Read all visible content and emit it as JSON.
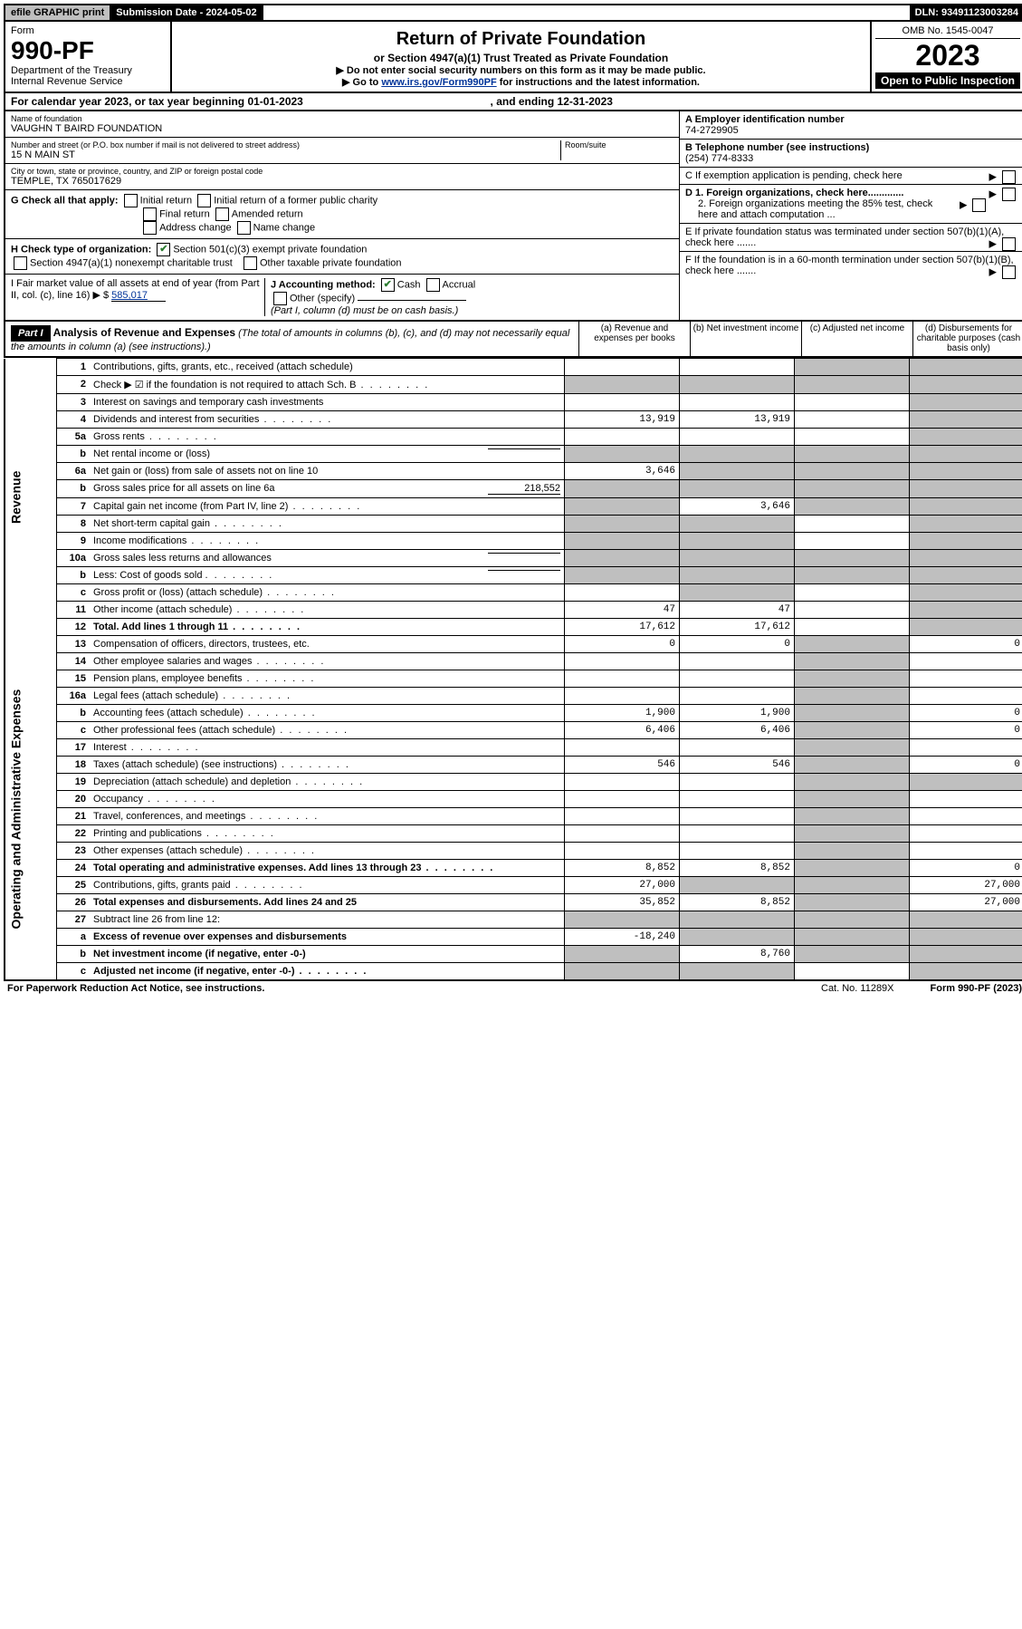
{
  "topbar": {
    "efile": "efile GRAPHIC print",
    "subdate": "Submission Date - 2024-05-02",
    "dln": "DLN: 93491123003284"
  },
  "header": {
    "form_label": "Form",
    "form_no": "990-PF",
    "dept1": "Department of the Treasury",
    "dept2": "Internal Revenue Service",
    "title": "Return of Private Foundation",
    "subtitle": "or Section 4947(a)(1) Trust Treated as Private Foundation",
    "instr1": "▶ Do not enter social security numbers on this form as it may be made public.",
    "instr2_pre": "▶ Go to ",
    "instr2_link": "www.irs.gov/Form990PF",
    "instr2_post": " for instructions and the latest information.",
    "omb": "OMB No. 1545-0047",
    "year": "2023",
    "open": "Open to Public Inspection"
  },
  "calrow": {
    "pre": "For calendar year 2023, or tax year beginning ",
    "begin": "01-01-2023",
    "mid": " , and ending ",
    "end": "12-31-2023"
  },
  "info": {
    "name_lbl": "Name of foundation",
    "name_val": "VAUGHN T BAIRD FOUNDATION",
    "addr_lbl": "Number and street (or P.O. box number if mail is not delivered to street address)",
    "addr_val": "15 N MAIN ST",
    "room_lbl": "Room/suite",
    "city_lbl": "City or town, state or province, country, and ZIP or foreign postal code",
    "city_val": "TEMPLE, TX  765017629",
    "a_lbl": "A Employer identification number",
    "a_val": "74-2729905",
    "b_lbl": "B Telephone number (see instructions)",
    "b_val": "(254) 774-8333",
    "c_lbl": "C If exemption application is pending, check here",
    "d1": "D 1. Foreign organizations, check here.............",
    "d2": "2. Foreign organizations meeting the 85% test, check here and attach computation ...",
    "e": "E  If private foundation status was terminated under section 507(b)(1)(A), check here .......",
    "f": "F  If the foundation is in a 60-month termination under section 507(b)(1)(B), check here .......",
    "g": "G Check all that apply:",
    "g_opts": [
      "Initial return",
      "Initial return of a former public charity",
      "Final return",
      "Amended return",
      "Address change",
      "Name change"
    ],
    "h": "H Check type of organization:",
    "h1": "Section 501(c)(3) exempt private foundation",
    "h2": "Section 4947(a)(1) nonexempt charitable trust",
    "h3": "Other taxable private foundation",
    "i_lbl": "I Fair market value of all assets at end of year (from Part II, col. (c), line 16) ▶ $",
    "i_val": "585,017",
    "j_lbl": "J Accounting method:",
    "j_cash": "Cash",
    "j_acc": "Accrual",
    "j_other": "Other (specify)",
    "j_note": "(Part I, column (d) must be on cash basis.)"
  },
  "part1": {
    "label": "Part I",
    "title": "Analysis of Revenue and Expenses",
    "note": " (The total of amounts in columns (b), (c), and (d) may not necessarily equal the amounts in column (a) (see instructions).)",
    "col_a": "(a) Revenue and expenses per books",
    "col_b": "(b) Net investment income",
    "col_c": "(c) Adjusted net income",
    "col_d": "(d) Disbursements for charitable purposes (cash basis only)"
  },
  "sections": {
    "rev": "Revenue",
    "exp": "Operating and Administrative Expenses"
  },
  "rows": [
    {
      "n": "1",
      "d": "Contributions, gifts, grants, etc., received (attach schedule)",
      "a": "",
      "b": "",
      "c": "s",
      "dd": "s"
    },
    {
      "n": "2",
      "d": "Check ▶ ☑ if the foundation is not required to attach Sch. B",
      "dots": true,
      "a": "s",
      "b": "s",
      "c": "s",
      "dd": "s"
    },
    {
      "n": "3",
      "d": "Interest on savings and temporary cash investments",
      "a": "",
      "b": "",
      "c": "",
      "dd": "s"
    },
    {
      "n": "4",
      "d": "Dividends and interest from securities",
      "dots": true,
      "a": "13,919",
      "b": "13,919",
      "c": "",
      "dd": "s"
    },
    {
      "n": "5a",
      "d": "Gross rents",
      "dots": true,
      "a": "",
      "b": "",
      "c": "",
      "dd": "s"
    },
    {
      "n": "b",
      "d": "Net rental income or (loss)",
      "inline": "",
      "a": "s",
      "b": "s",
      "c": "s",
      "dd": "s"
    },
    {
      "n": "6a",
      "d": "Net gain or (loss) from sale of assets not on line 10",
      "a": "3,646",
      "b": "s",
      "c": "s",
      "dd": "s"
    },
    {
      "n": "b",
      "d": "Gross sales price for all assets on line 6a",
      "inline": "218,552",
      "a": "s",
      "b": "s",
      "c": "s",
      "dd": "s"
    },
    {
      "n": "7",
      "d": "Capital gain net income (from Part IV, line 2)",
      "dots": true,
      "a": "s",
      "b": "3,646",
      "c": "s",
      "dd": "s"
    },
    {
      "n": "8",
      "d": "Net short-term capital gain",
      "dots": true,
      "a": "s",
      "b": "s",
      "c": "",
      "dd": "s"
    },
    {
      "n": "9",
      "d": "Income modifications",
      "dots": true,
      "a": "s",
      "b": "s",
      "c": "",
      "dd": "s"
    },
    {
      "n": "10a",
      "d": "Gross sales less returns and allowances",
      "inline": "",
      "a": "s",
      "b": "s",
      "c": "s",
      "dd": "s"
    },
    {
      "n": "b",
      "d": "Less: Cost of goods sold",
      "dots": true,
      "inline": "",
      "a": "s",
      "b": "s",
      "c": "s",
      "dd": "s"
    },
    {
      "n": "c",
      "d": "Gross profit or (loss) (attach schedule)",
      "dots": true,
      "a": "",
      "b": "s",
      "c": "",
      "dd": "s"
    },
    {
      "n": "11",
      "d": "Other income (attach schedule)",
      "dots": true,
      "a": "47",
      "b": "47",
      "c": "",
      "dd": "s"
    },
    {
      "n": "12",
      "d": "Total. Add lines 1 through 11",
      "bold": true,
      "dots": true,
      "a": "17,612",
      "b": "17,612",
      "c": "",
      "dd": "s"
    }
  ],
  "exp_rows": [
    {
      "n": "13",
      "d": "Compensation of officers, directors, trustees, etc.",
      "a": "0",
      "b": "0",
      "c": "s",
      "dd": "0"
    },
    {
      "n": "14",
      "d": "Other employee salaries and wages",
      "dots": true,
      "a": "",
      "b": "",
      "c": "s",
      "dd": ""
    },
    {
      "n": "15",
      "d": "Pension plans, employee benefits",
      "dots": true,
      "a": "",
      "b": "",
      "c": "s",
      "dd": ""
    },
    {
      "n": "16a",
      "d": "Legal fees (attach schedule)",
      "dots": true,
      "a": "",
      "b": "",
      "c": "s",
      "dd": ""
    },
    {
      "n": "b",
      "d": "Accounting fees (attach schedule)",
      "dots": true,
      "a": "1,900",
      "b": "1,900",
      "c": "s",
      "dd": "0"
    },
    {
      "n": "c",
      "d": "Other professional fees (attach schedule)",
      "dots": true,
      "a": "6,406",
      "b": "6,406",
      "c": "s",
      "dd": "0"
    },
    {
      "n": "17",
      "d": "Interest",
      "dots": true,
      "a": "",
      "b": "",
      "c": "s",
      "dd": ""
    },
    {
      "n": "18",
      "d": "Taxes (attach schedule) (see instructions)",
      "dots": true,
      "a": "546",
      "b": "546",
      "c": "s",
      "dd": "0"
    },
    {
      "n": "19",
      "d": "Depreciation (attach schedule) and depletion",
      "dots": true,
      "a": "",
      "b": "",
      "c": "s",
      "dd": "s"
    },
    {
      "n": "20",
      "d": "Occupancy",
      "dots": true,
      "a": "",
      "b": "",
      "c": "s",
      "dd": ""
    },
    {
      "n": "21",
      "d": "Travel, conferences, and meetings",
      "dots": true,
      "a": "",
      "b": "",
      "c": "s",
      "dd": ""
    },
    {
      "n": "22",
      "d": "Printing and publications",
      "dots": true,
      "a": "",
      "b": "",
      "c": "s",
      "dd": ""
    },
    {
      "n": "23",
      "d": "Other expenses (attach schedule)",
      "dots": true,
      "a": "",
      "b": "",
      "c": "s",
      "dd": ""
    },
    {
      "n": "24",
      "d": "Total operating and administrative expenses. Add lines 13 through 23",
      "bold": true,
      "dots": true,
      "a": "8,852",
      "b": "8,852",
      "c": "s",
      "dd": "0"
    },
    {
      "n": "25",
      "d": "Contributions, gifts, grants paid",
      "dots": true,
      "a": "27,000",
      "b": "s",
      "c": "s",
      "dd": "27,000"
    },
    {
      "n": "26",
      "d": "Total expenses and disbursements. Add lines 24 and 25",
      "bold": true,
      "a": "35,852",
      "b": "8,852",
      "c": "s",
      "dd": "27,000"
    },
    {
      "n": "27",
      "d": "Subtract line 26 from line 12:",
      "a": "s",
      "b": "s",
      "c": "s",
      "dd": "s"
    },
    {
      "n": "a",
      "d": "Excess of revenue over expenses and disbursements",
      "bold": true,
      "a": "-18,240",
      "b": "s",
      "c": "s",
      "dd": "s"
    },
    {
      "n": "b",
      "d": "Net investment income (if negative, enter -0-)",
      "bold": true,
      "a": "s",
      "b": "8,760",
      "c": "s",
      "dd": "s"
    },
    {
      "n": "c",
      "d": "Adjusted net income (if negative, enter -0-)",
      "bold": true,
      "dots": true,
      "a": "s",
      "b": "s",
      "c": "",
      "dd": "s"
    }
  ],
  "footer": {
    "left": "For Paperwork Reduction Act Notice, see instructions.",
    "mid": "Cat. No. 11289X",
    "right": "Form 990-PF (2023)"
  }
}
